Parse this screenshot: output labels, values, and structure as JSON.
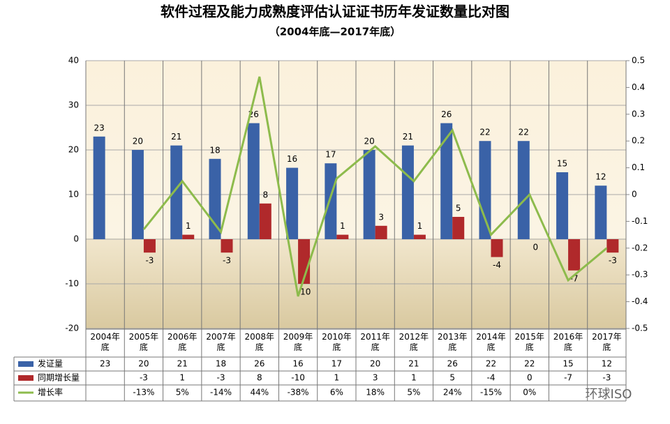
{
  "chart_data": {
    "type": "bar-line",
    "title": "软件过程及能力成熟度评估认证证书历年发证数量比对图",
    "subtitle": "（2004年底—2017年底）",
    "watermark": "环球ISO",
    "categories": [
      "2004年底",
      "2005年底",
      "2006年底",
      "2007年底",
      "2008年底",
      "2009年底",
      "2010年底",
      "2011年底",
      "2012年底",
      "2013年底",
      "2014年底",
      "2015年底",
      "2016年底",
      "2017年底"
    ],
    "series": [
      {
        "name": "发证量",
        "type": "bar",
        "color": "#3a62a7",
        "values": [
          23,
          20,
          21,
          18,
          26,
          16,
          17,
          20,
          21,
          26,
          22,
          22,
          15,
          12
        ]
      },
      {
        "name": "同期增长量",
        "type": "bar",
        "color": "#b0292b",
        "values": [
          null,
          -3,
          1,
          -3,
          8,
          -10,
          1,
          3,
          1,
          5,
          -4,
          0,
          -7,
          -3
        ]
      },
      {
        "name": "增长率",
        "type": "line",
        "axis": "y2",
        "color": "#8dbb4c",
        "values": [
          null,
          -0.13,
          0.05,
          -0.14,
          0.44,
          -0.38,
          0.06,
          0.18,
          0.05,
          0.24,
          -0.15,
          0,
          -0.32,
          -0.2
        ],
        "value_labels": [
          null,
          "-13%",
          "5%",
          "-14%",
          "44%",
          "-38%",
          "6%",
          "18%",
          "5%",
          "24%",
          "-15%",
          "0%",
          null,
          null
        ]
      }
    ],
    "ylim": [
      -20,
      40
    ],
    "yticks": [
      -20,
      -10,
      0,
      10,
      20,
      30,
      40
    ],
    "y2lim": [
      -0.5,
      0.5
    ],
    "y2ticks": [
      -0.5,
      -0.4,
      -0.3,
      -0.2,
      -0.1,
      0,
      0.1,
      0.2,
      0.3,
      0.4,
      0.5
    ],
    "grid": true
  }
}
